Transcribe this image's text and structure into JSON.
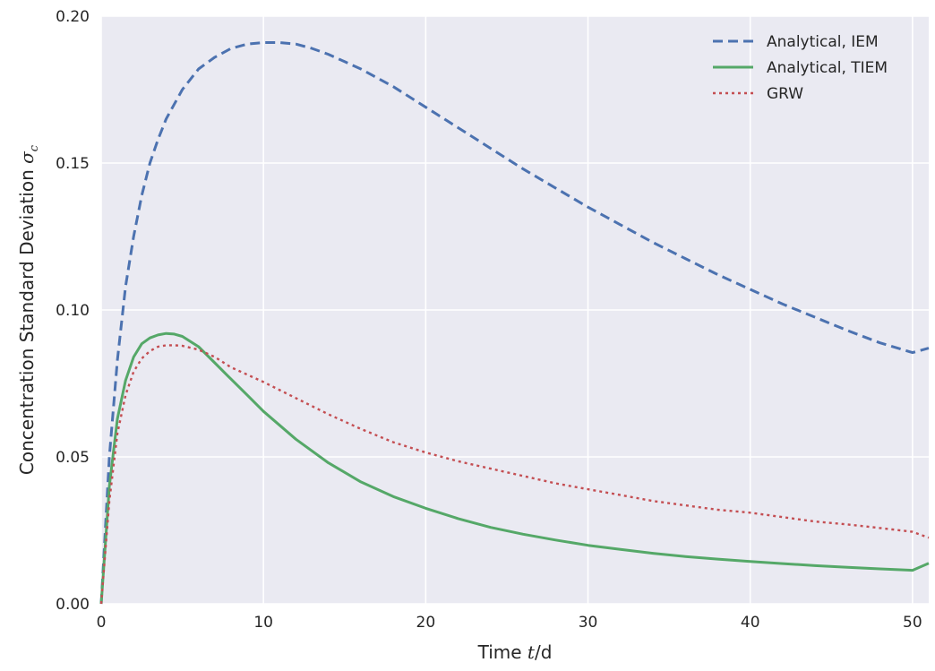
{
  "chart_data": {
    "type": "line",
    "title": "",
    "xlabel": {
      "text": "Time ",
      "math": "t",
      "suffix": "/d"
    },
    "ylabel": {
      "text": "Concentration Standard Deviation ",
      "math": "σ",
      "sub": "c"
    },
    "xlim": [
      0,
      51
    ],
    "ylim": [
      0,
      0.2
    ],
    "xticks": [
      0,
      10,
      20,
      30,
      40,
      50
    ],
    "xtick_labels": [
      "0",
      "10",
      "20",
      "30",
      "40",
      "50"
    ],
    "yticks": [
      0,
      0.05,
      0.1,
      0.15,
      0.2
    ],
    "ytick_labels": [
      "0.00",
      "0.05",
      "0.10",
      "0.15",
      "0.20"
    ],
    "grid": true,
    "legend_position": "top-right",
    "series": [
      {
        "name": "Analytical, IEM",
        "style": "dashed",
        "color": "#4c72b0",
        "x": [
          0,
          0.5,
          1,
          1.5,
          2,
          2.5,
          3,
          3.5,
          4,
          5,
          6,
          7,
          8,
          9,
          10,
          11,
          12,
          13,
          14,
          15,
          16,
          18,
          20,
          22,
          24,
          26,
          28,
          30,
          32,
          34,
          36,
          38,
          40,
          42,
          44,
          46,
          48,
          50,
          51
        ],
        "y": [
          0,
          0.05,
          0.083,
          0.108,
          0.125,
          0.139,
          0.15,
          0.158,
          0.165,
          0.175,
          0.182,
          0.186,
          0.189,
          0.1905,
          0.191,
          0.191,
          0.1905,
          0.189,
          0.187,
          0.1845,
          0.182,
          0.176,
          0.169,
          0.162,
          0.155,
          0.148,
          0.1415,
          0.135,
          0.129,
          0.123,
          0.1175,
          0.112,
          0.107,
          0.102,
          0.0975,
          0.093,
          0.0888,
          0.0855,
          0.087
        ]
      },
      {
        "name": "Analytical, TIEM",
        "style": "solid",
        "color": "#55a868",
        "x": [
          0,
          0.5,
          1,
          1.5,
          2,
          2.5,
          3,
          3.5,
          4,
          4.5,
          5,
          6,
          7,
          8,
          9,
          10,
          12,
          14,
          16,
          18,
          20,
          22,
          24,
          26,
          28,
          30,
          32,
          34,
          36,
          38,
          40,
          42,
          44,
          46,
          48,
          50,
          51
        ],
        "y": [
          0,
          0.04,
          0.063,
          0.076,
          0.084,
          0.0885,
          0.0905,
          0.0915,
          0.092,
          0.0918,
          0.091,
          0.0875,
          0.082,
          0.0765,
          0.071,
          0.0655,
          0.056,
          0.048,
          0.0415,
          0.0365,
          0.0325,
          0.029,
          0.026,
          0.0237,
          0.0217,
          0.0199,
          0.0185,
          0.0172,
          0.0161,
          0.0152,
          0.0144,
          0.0137,
          0.013,
          0.0124,
          0.0119,
          0.0114,
          0.0138
        ]
      },
      {
        "name": "GRW",
        "style": "dotted",
        "color": "#c44e52",
        "x": [
          0,
          0.5,
          1,
          1.5,
          2,
          2.5,
          3,
          3.5,
          4,
          4.5,
          5,
          6,
          7,
          8,
          9,
          10,
          12,
          14,
          16,
          18,
          20,
          22,
          24,
          26,
          28,
          30,
          32,
          34,
          36,
          38,
          40,
          42,
          44,
          46,
          48,
          50,
          51
        ],
        "y": [
          0,
          0.035,
          0.058,
          0.071,
          0.079,
          0.0835,
          0.086,
          0.0875,
          0.088,
          0.088,
          0.0878,
          0.0865,
          0.084,
          0.0805,
          0.078,
          0.0755,
          0.07,
          0.0645,
          0.0595,
          0.055,
          0.0515,
          0.0485,
          0.046,
          0.0435,
          0.041,
          0.039,
          0.037,
          0.035,
          0.0335,
          0.032,
          0.031,
          0.0295,
          0.028,
          0.027,
          0.0258,
          0.0245,
          0.0225
        ]
      }
    ]
  }
}
